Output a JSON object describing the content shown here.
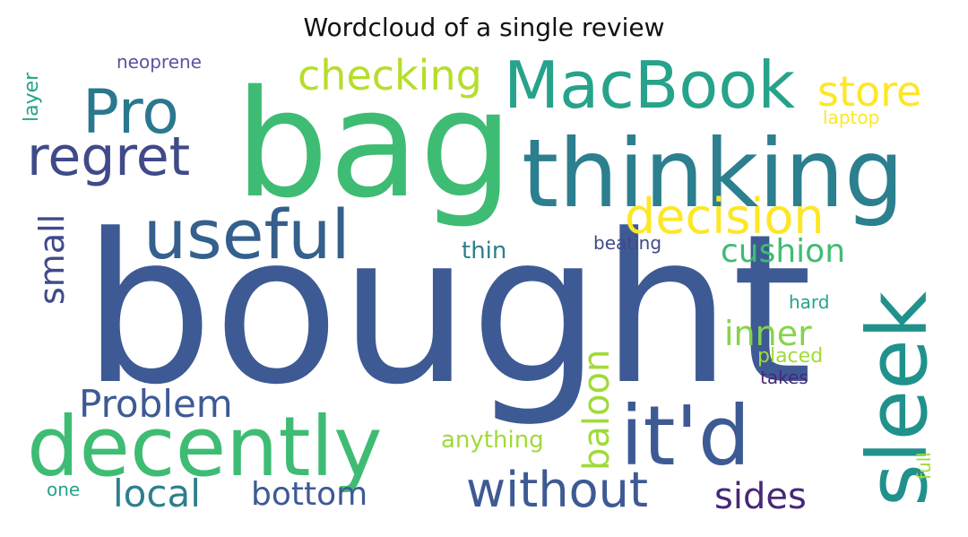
{
  "chart_data": {
    "type": "wordcloud",
    "title": "Wordcloud of a single review",
    "words": [
      {
        "text": "bought",
        "color": "#3e5a94"
      },
      {
        "text": "bag",
        "color": "#3fbc73"
      },
      {
        "text": "thinking",
        "color": "#2c7f8e"
      },
      {
        "text": "MacBook",
        "color": "#26a38a"
      },
      {
        "text": "decently",
        "color": "#3fbc73"
      },
      {
        "text": "it'd",
        "color": "#3e5a94"
      },
      {
        "text": "sleek",
        "color": "#21918c"
      },
      {
        "text": "useful",
        "color": "#35608d"
      },
      {
        "text": "Pro",
        "color": "#2a788e"
      },
      {
        "text": "regret",
        "color": "#404a89"
      },
      {
        "text": "checking",
        "color": "#b5de2b"
      },
      {
        "text": "decision",
        "color": "#fde725"
      },
      {
        "text": "store",
        "color": "#fde725"
      },
      {
        "text": "without",
        "color": "#3e5a94"
      },
      {
        "text": "Problem",
        "color": "#3e5a94"
      },
      {
        "text": "local",
        "color": "#2c7f8e"
      },
      {
        "text": "bottom",
        "color": "#3e5a94"
      },
      {
        "text": "cushion",
        "color": "#3fbc73"
      },
      {
        "text": "inner",
        "color": "#84d44b"
      },
      {
        "text": "baloon",
        "color": "#a0da39"
      },
      {
        "text": "sides",
        "color": "#482878"
      },
      {
        "text": "small",
        "color": "#404a89"
      },
      {
        "text": "thin",
        "color": "#2c7f8e"
      },
      {
        "text": "beating",
        "color": "#404a89"
      },
      {
        "text": "anything",
        "color": "#a0da39"
      },
      {
        "text": "neoprene",
        "color": "#5a54a0"
      },
      {
        "text": "layer",
        "color": "#26a38a"
      },
      {
        "text": "laptop",
        "color": "#fde725"
      },
      {
        "text": "hard",
        "color": "#26a38a"
      },
      {
        "text": "placed",
        "color": "#a0da39"
      },
      {
        "text": "takes",
        "color": "#482878"
      },
      {
        "text": "one",
        "color": "#26a38a"
      },
      {
        "text": "full",
        "color": "#a0da39"
      }
    ]
  }
}
